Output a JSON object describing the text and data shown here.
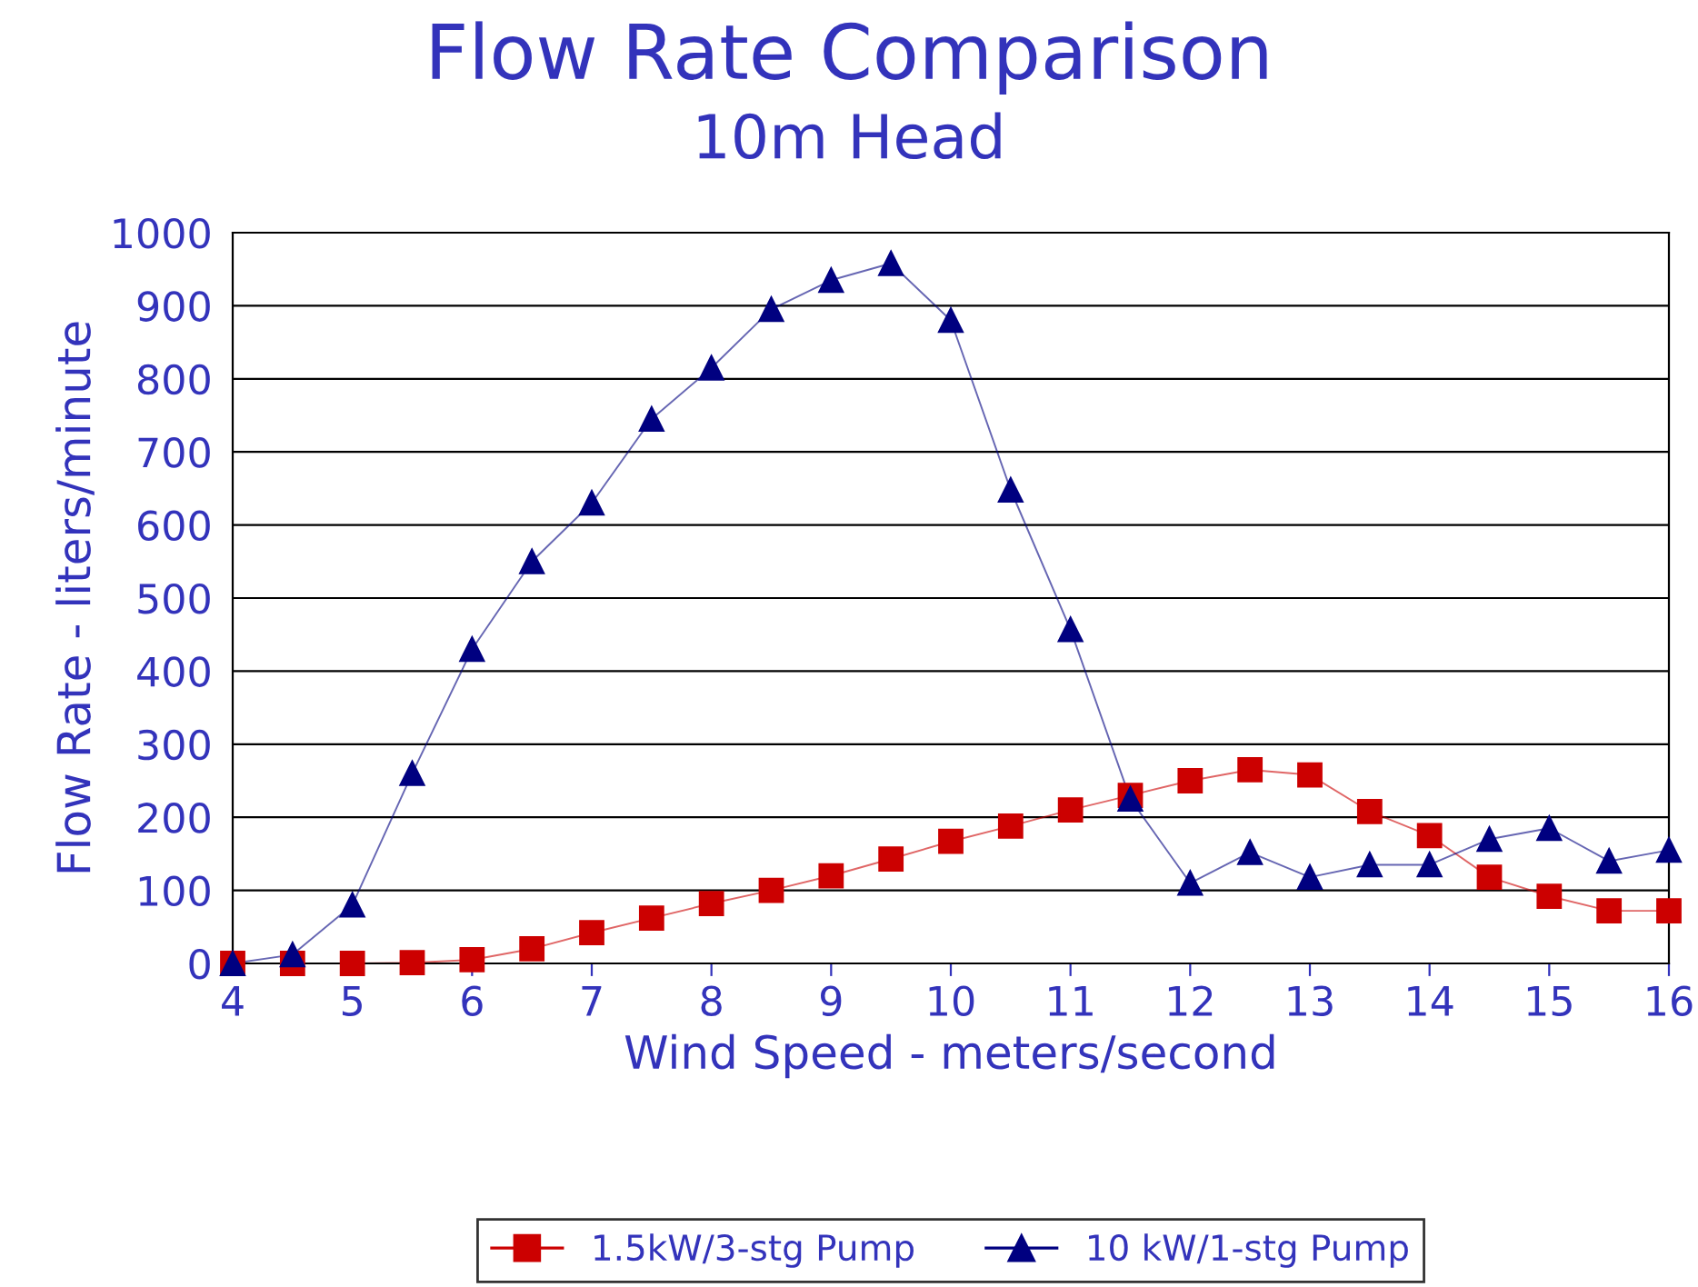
{
  "chart_data": {
    "type": "line",
    "title": "Flow Rate Comparison",
    "subtitle": "10m Head",
    "xlabel": "Wind Speed - meters/second",
    "ylabel": "Flow Rate - liters/minute",
    "x": [
      4,
      4.5,
      5,
      5.5,
      6,
      6.5,
      7,
      7.5,
      8,
      8.5,
      9,
      9.5,
      10,
      10.5,
      11,
      11.5,
      12,
      12.5,
      13,
      13.5,
      14,
      14.5,
      15,
      15.5,
      16
    ],
    "series": [
      {
        "name": "1.5kW/3-stg Pump",
        "color": "#cc0000",
        "marker": "square",
        "values": [
          0,
          0,
          0,
          1,
          5,
          20,
          42,
          62,
          82,
          100,
          120,
          143,
          167,
          188,
          210,
          230,
          250,
          265,
          258,
          208,
          175,
          118,
          92,
          72,
          72
        ]
      },
      {
        "name": "10 kW/1-stg Pump",
        "color": "#000080",
        "marker": "triangle",
        "values": [
          0,
          12,
          80,
          260,
          430,
          550,
          630,
          745,
          815,
          895,
          935,
          958,
          880,
          648,
          457,
          225,
          110,
          152,
          118,
          135,
          135,
          170,
          185,
          140,
          155
        ]
      }
    ],
    "xlim": [
      4,
      16
    ],
    "xticks": [
      4,
      5,
      6,
      7,
      8,
      9,
      10,
      11,
      12,
      13,
      14,
      15,
      16
    ],
    "ylim": [
      0,
      1000
    ],
    "yticks": [
      0,
      100,
      200,
      300,
      400,
      500,
      600,
      700,
      800,
      900,
      1000
    ],
    "grid": "y",
    "legend": "bottom",
    "line_style": "solid"
  }
}
